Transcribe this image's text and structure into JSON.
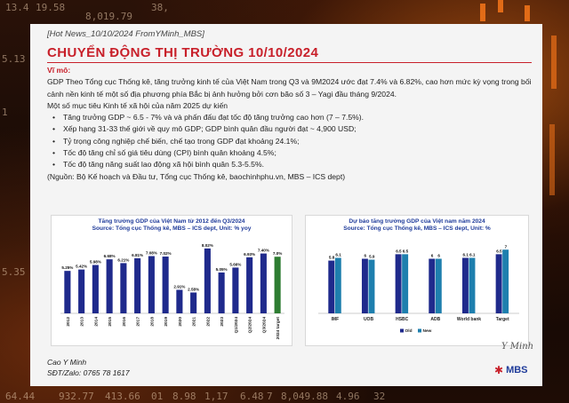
{
  "background": {
    "numbers": [
      "13.4",
      "19.58",
      "8,019.79",
      "38,",
      "5.13",
      "1",
      "5.35",
      "64.44",
      "932.77",
      "413.66",
      "01",
      "8.98",
      "1,17",
      "6.48",
      "7",
      "8,049.88",
      "4.96",
      "32"
    ]
  },
  "header": {
    "hot_news": "[Hot News_10/10/2024 FromYMinh_MBS]",
    "title": "CHUYỂN ĐỘNG THỊ TRƯỜNG 10/10/2024"
  },
  "body": {
    "subheading": "Vĩ mô:",
    "paragraph": "GDP Theo Tổng cục Thống kê, tăng trưởng kinh tế của Việt Nam trong Q3 và 9M2024 ước đạt 7.4% và 6.82%, cao hơn mức kỳ vọng trong bối cảnh nền kinh tế một số địa phương phía Bắc bị ảnh hưởng bởi cơn bão số 3 – Yagi đầu tháng 9/2024.",
    "targets_intro": "Một số mục tiêu Kinh tế xã hội của năm 2025 dự kiến",
    "bullets": [
      "Tăng trưởng GDP ~ 6.5 - 7% và và phấn đấu đạt tốc độ tăng trưởng cao hơn (7 – 7.5%).",
      "Xếp hạng 31-33 thế giới về quy mô GDP; GDP bình quân đầu người đạt ~ 4,900 USD;",
      "Tỷ trọng công nghiệp chế biến, chế tạo trong GDP đạt khoảng 24.1%;",
      "Tốc độ tăng chỉ số giá tiêu dùng (CPI) bình quân khoảng 4.5%;",
      "Tốc độ tăng năng suất lao động xã hội bình quân 5.3-5.5%."
    ],
    "source": "(Nguồn: Bộ Kế hoạch và Đầu tư, Tổng cục Thống kê, baochinhphu.vn, MBS – ICS dept)"
  },
  "footer": {
    "name": "Cao Y Minh",
    "contact": "SĐT/Zalo: 0765 78 1617",
    "signature": "Y Minh",
    "brand": "MBS"
  },
  "colors": {
    "title_red": "#c8202a",
    "bar_navy": "#1f2a8c",
    "bar_green": "#2e7d32",
    "bar_teal": "#1e7fae"
  },
  "chart_data": [
    {
      "type": "bar",
      "title": "Tăng trưởng GDP của Việt Nam từ 2012 đến Q3/2024",
      "subtitle": "Source: Tổng cục Thống kê, MBS – ICS dept, Unit: % yoy",
      "categories": [
        "2012",
        "2013",
        "2014",
        "2015",
        "2016",
        "2017",
        "2018",
        "2019",
        "2020",
        "2021",
        "2022",
        "2023",
        "Q1/2024",
        "Q2/2024",
        "Q3/2024",
        "2024 target"
      ],
      "value_labels": [
        "5.25%",
        "5.42%",
        "5.98%",
        "6.68%",
        "6.21%",
        "6.81%",
        "7.08%",
        "7.02%",
        "2.91%",
        "2.58%",
        "8.02%",
        "5.05%",
        "5.66%",
        "6.93%",
        "7.40%",
        "7.0%"
      ],
      "values": [
        5.25,
        5.42,
        5.98,
        6.68,
        6.21,
        6.81,
        7.08,
        7.02,
        2.91,
        2.58,
        8.02,
        5.05,
        5.66,
        6.93,
        7.4,
        7.0
      ],
      "highlight_last": true,
      "ylim": [
        0,
        9
      ]
    },
    {
      "type": "bar",
      "title": "Dự báo tăng trưởng GDP của Việt nam năm 2024",
      "subtitle": "Source: Tổng cục Thống kê, MBS – ICS dept, Unit: %",
      "categories": [
        "IMF",
        "UOB",
        "HSBC",
        "ADB",
        "World bank",
        "Target"
      ],
      "series": [
        {
          "name": "Old",
          "values": [
            5.8,
            6,
            6.5,
            6,
            6.1,
            6.5
          ],
          "labels": [
            "5.8",
            "6",
            "6.5",
            "6",
            "6.1",
            "6.5"
          ]
        },
        {
          "name": "New",
          "values": [
            6.1,
            5.9,
            6.5,
            6,
            6.1,
            7
          ],
          "labels": [
            "6.1",
            "5.9",
            "6.5",
            "6",
            "6.1",
            "7"
          ]
        }
      ],
      "legend": "bottom",
      "ylim": [
        0,
        8
      ]
    }
  ]
}
